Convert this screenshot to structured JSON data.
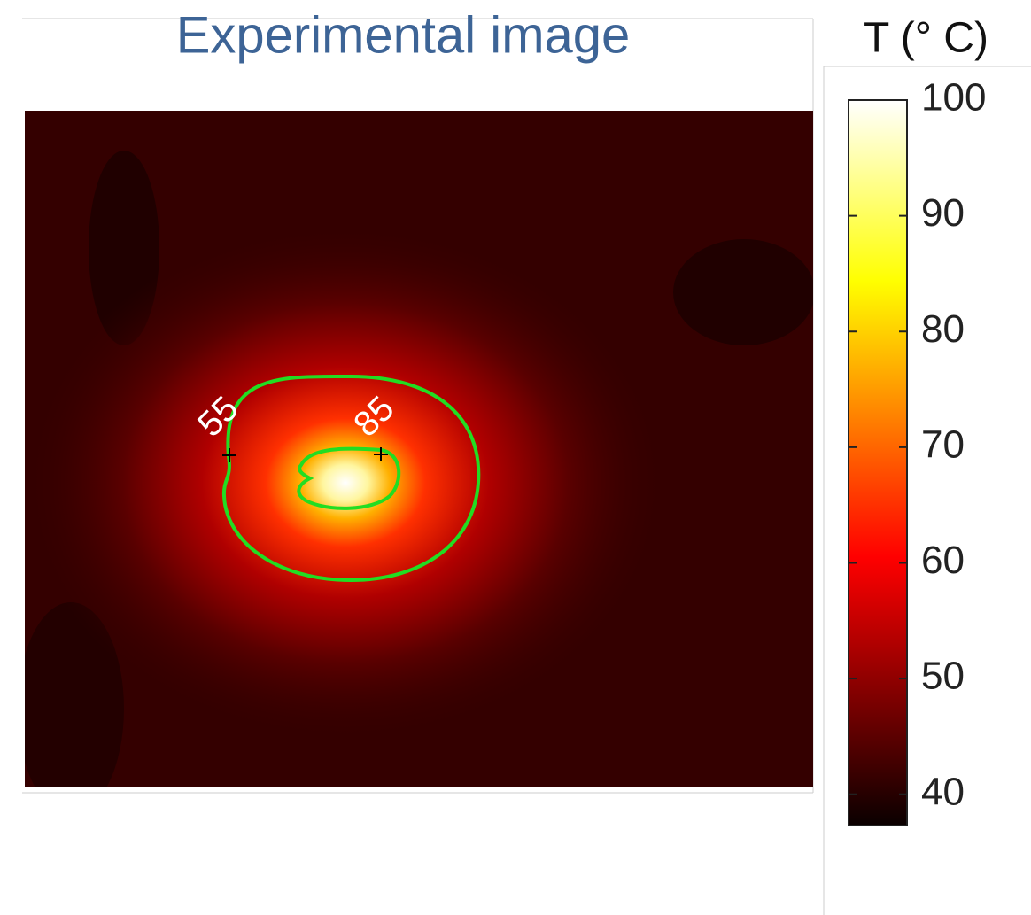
{
  "chart_data": {
    "type": "heatmap",
    "title": "Experimental image",
    "colormap": "hot",
    "colorbar": {
      "label": "T (° C)",
      "lim": [
        37.3,
        100
      ],
      "ticks": [
        40,
        50,
        60,
        70,
        80,
        90,
        100
      ]
    },
    "contours": [
      {
        "level": 55,
        "label": "55",
        "color": "#22dd22"
      },
      {
        "level": 85,
        "label": "85",
        "color": "#22dd22"
      }
    ]
  }
}
